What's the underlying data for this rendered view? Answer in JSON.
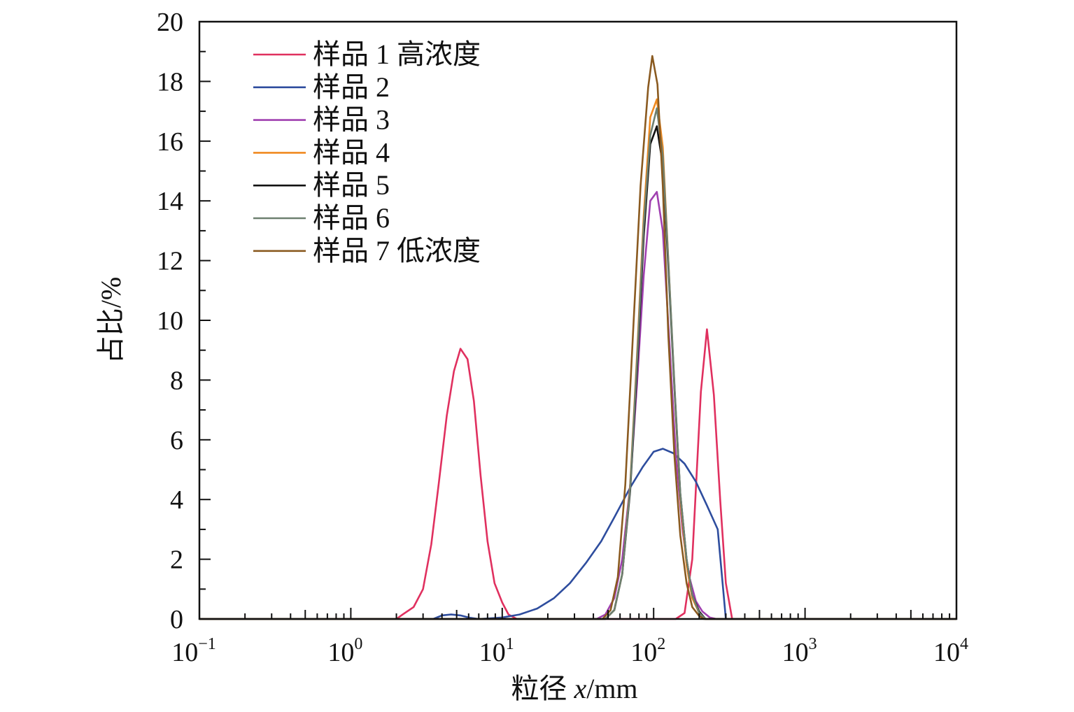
{
  "chart_data": {
    "type": "line",
    "xscale": "log",
    "xlabel": "粒径 x/mm",
    "xlabel_parts": {
      "prefix": "粒径 ",
      "var": "x",
      "unit": "/mm"
    },
    "ylabel": "占比/%",
    "xlim": [
      0.1,
      10000
    ],
    "ylim": [
      0,
      20
    ],
    "yticks": [
      "0",
      "2",
      "4",
      "6",
      "8",
      "10",
      "12",
      "14",
      "16",
      "18",
      "20"
    ],
    "xticks": [
      {
        "value": 0.1,
        "base": "10",
        "exp": "−1"
      },
      {
        "value": 1,
        "base": "10",
        "exp": "0"
      },
      {
        "value": 10,
        "base": "10",
        "exp": "1"
      },
      {
        "value": 100,
        "base": "10",
        "exp": "2"
      },
      {
        "value": 1000,
        "base": "10",
        "exp": "3"
      },
      {
        "value": 10000,
        "base": "10",
        "exp": "4"
      }
    ],
    "grid": false,
    "legend_position": "top-left",
    "series": [
      {
        "name": "样品 1 高浓度",
        "color": "#e0305f",
        "points": [
          [
            0.1,
            0
          ],
          [
            2,
            0
          ],
          [
            2.2,
            0.15
          ],
          [
            2.6,
            0.4
          ],
          [
            3,
            1
          ],
          [
            3.4,
            2.5
          ],
          [
            3.8,
            4.5
          ],
          [
            4.3,
            6.8
          ],
          [
            4.8,
            8.3
          ],
          [
            5.3,
            9.05
          ],
          [
            5.9,
            8.7
          ],
          [
            6.5,
            7.3
          ],
          [
            7.2,
            4.8
          ],
          [
            8,
            2.6
          ],
          [
            8.9,
            1.2
          ],
          [
            10,
            0.55
          ],
          [
            11,
            0.15
          ],
          [
            12.5,
            0
          ],
          [
            140,
            0
          ],
          [
            160,
            0.2
          ],
          [
            180,
            2
          ],
          [
            205,
            7.6
          ],
          [
            225,
            9.7
          ],
          [
            250,
            7.5
          ],
          [
            275,
            4
          ],
          [
            300,
            1.2
          ],
          [
            330,
            0
          ],
          [
            10000,
            0
          ]
        ]
      },
      {
        "name": "样品 2",
        "color": "#2e4d9e",
        "points": [
          [
            0.1,
            0
          ],
          [
            3.5,
            0
          ],
          [
            4,
            0.12
          ],
          [
            4.6,
            0.15
          ],
          [
            5.3,
            0.12
          ],
          [
            6,
            0.05
          ],
          [
            7,
            0
          ],
          [
            10,
            0.05
          ],
          [
            13,
            0.15
          ],
          [
            17,
            0.35
          ],
          [
            22,
            0.7
          ],
          [
            28,
            1.2
          ],
          [
            36,
            1.9
          ],
          [
            45,
            2.6
          ],
          [
            55,
            3.4
          ],
          [
            70,
            4.4
          ],
          [
            85,
            5.1
          ],
          [
            100,
            5.6
          ],
          [
            115,
            5.7
          ],
          [
            135,
            5.55
          ],
          [
            160,
            5.2
          ],
          [
            190,
            4.6
          ],
          [
            225,
            3.8
          ],
          [
            265,
            3
          ],
          [
            300,
            0
          ],
          [
            10000,
            0
          ]
        ]
      },
      {
        "name": "样品 3",
        "color": "#a040b0",
        "points": [
          [
            0.1,
            0
          ],
          [
            42,
            0
          ],
          [
            48,
            0.15
          ],
          [
            55,
            0.7
          ],
          [
            62,
            2
          ],
          [
            70,
            4.5
          ],
          [
            78,
            8
          ],
          [
            86,
            11.5
          ],
          [
            95,
            14
          ],
          [
            105,
            14.3
          ],
          [
            115,
            13
          ],
          [
            128,
            9
          ],
          [
            140,
            5.5
          ],
          [
            155,
            3
          ],
          [
            170,
            1.5
          ],
          [
            190,
            0.6
          ],
          [
            210,
            0.25
          ],
          [
            235,
            0.05
          ],
          [
            260,
            0
          ],
          [
            10000,
            0
          ]
        ]
      },
      {
        "name": "样品 4",
        "color": "#f08a20",
        "points": [
          [
            0.1,
            0
          ],
          [
            48,
            0
          ],
          [
            55,
            0.3
          ],
          [
            62,
            1.5
          ],
          [
            70,
            4.5
          ],
          [
            78,
            9
          ],
          [
            86,
            13.5
          ],
          [
            95,
            16.8
          ],
          [
            105,
            17.4
          ],
          [
            115,
            15.8
          ],
          [
            125,
            12
          ],
          [
            138,
            7.5
          ],
          [
            150,
            4
          ],
          [
            165,
            1.8
          ],
          [
            180,
            0.7
          ],
          [
            200,
            0.2
          ],
          [
            220,
            0
          ],
          [
            10000,
            0
          ]
        ]
      },
      {
        "name": "样品 5",
        "color": "#111111",
        "points": [
          [
            0.1,
            0
          ],
          [
            48,
            0
          ],
          [
            55,
            0.3
          ],
          [
            62,
            1.5
          ],
          [
            70,
            4.3
          ],
          [
            78,
            8.5
          ],
          [
            86,
            12.8
          ],
          [
            95,
            15.9
          ],
          [
            105,
            16.5
          ],
          [
            115,
            15.2
          ],
          [
            125,
            11.8
          ],
          [
            138,
            7.5
          ],
          [
            150,
            4.2
          ],
          [
            165,
            2
          ],
          [
            180,
            0.8
          ],
          [
            200,
            0.25
          ],
          [
            220,
            0
          ],
          [
            10000,
            0
          ]
        ]
      },
      {
        "name": "样品 6",
        "color": "#6e8070",
        "points": [
          [
            0.1,
            0
          ],
          [
            48,
            0
          ],
          [
            55,
            0.3
          ],
          [
            62,
            1.5
          ],
          [
            70,
            4.4
          ],
          [
            78,
            8.8
          ],
          [
            86,
            13.2
          ],
          [
            95,
            16.2
          ],
          [
            105,
            17.1
          ],
          [
            115,
            15.5
          ],
          [
            125,
            12
          ],
          [
            138,
            7.6
          ],
          [
            150,
            4.2
          ],
          [
            165,
            2
          ],
          [
            180,
            0.8
          ],
          [
            200,
            0.2
          ],
          [
            220,
            0
          ],
          [
            10000,
            0
          ]
        ]
      },
      {
        "name": "样品 7 低浓度",
        "color": "#8a5a20",
        "points": [
          [
            0.1,
            0
          ],
          [
            46,
            0
          ],
          [
            52,
            0.3
          ],
          [
            58,
            1.4
          ],
          [
            65,
            4.5
          ],
          [
            73,
            9.5
          ],
          [
            82,
            14.5
          ],
          [
            92,
            17.8
          ],
          [
            98,
            18.85
          ],
          [
            106,
            17.9
          ],
          [
            115,
            14.5
          ],
          [
            125,
            9.5
          ],
          [
            137,
            5.5
          ],
          [
            150,
            2.8
          ],
          [
            165,
            1.2
          ],
          [
            180,
            0.4
          ],
          [
            200,
            0.1
          ],
          [
            215,
            0
          ],
          [
            10000,
            0
          ]
        ]
      }
    ]
  }
}
